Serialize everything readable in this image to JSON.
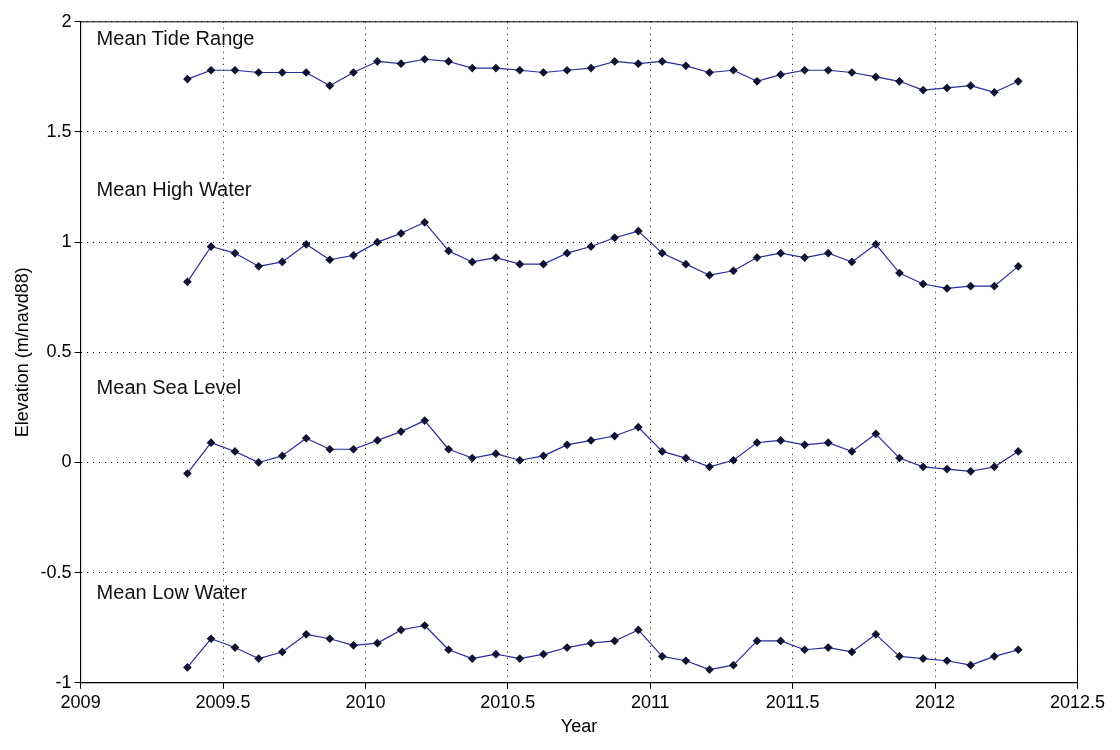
{
  "chart_data": {
    "type": "line",
    "xlabel": "Year",
    "ylabel": "Elevation (m/navd88)",
    "x": [
      2009.375,
      2009.458,
      2009.542,
      2009.625,
      2009.708,
      2009.792,
      2009.875,
      2009.958,
      2010.042,
      2010.125,
      2010.208,
      2010.292,
      2010.375,
      2010.458,
      2010.542,
      2010.625,
      2010.708,
      2010.792,
      2010.875,
      2010.958,
      2011.042,
      2011.125,
      2011.208,
      2011.292,
      2011.375,
      2011.458,
      2011.542,
      2011.625,
      2011.708,
      2011.792,
      2011.875,
      2011.958,
      2012.042,
      2012.125,
      2012.208,
      2012.292
    ],
    "series": [
      {
        "name": "Mean Tide Range",
        "color": "#2b2ba0",
        "values": [
          1.74,
          1.78,
          1.78,
          1.77,
          1.77,
          1.77,
          1.71,
          1.77,
          1.82,
          1.81,
          1.83,
          1.82,
          1.79,
          1.79,
          1.78,
          1.77,
          1.78,
          1.79,
          1.82,
          1.81,
          1.82,
          1.8,
          1.77,
          1.78,
          1.73,
          1.76,
          1.78,
          1.78,
          1.77,
          1.75,
          1.73,
          1.69,
          1.7,
          1.71,
          1.68,
          1.73
        ]
      },
      {
        "name": "Mean High Water",
        "color": "#2b2ba0",
        "values": [
          0.82,
          0.98,
          0.95,
          0.89,
          0.91,
          0.99,
          0.92,
          0.94,
          1.0,
          1.04,
          1.09,
          0.96,
          0.91,
          0.93,
          0.9,
          0.9,
          0.95,
          0.98,
          1.02,
          1.05,
          0.95,
          0.9,
          0.85,
          0.87,
          0.93,
          0.95,
          0.93,
          0.95,
          0.91,
          0.99,
          0.86,
          0.81,
          0.79,
          0.8,
          0.8,
          0.89
        ]
      },
      {
        "name": "Mean Sea Level",
        "color": "#2b2ba0",
        "values": [
          -0.05,
          0.09,
          0.05,
          0.0,
          0.03,
          0.11,
          0.06,
          0.06,
          0.1,
          0.14,
          0.19,
          0.06,
          0.02,
          0.04,
          0.01,
          0.03,
          0.08,
          0.1,
          0.12,
          0.16,
          0.05,
          0.02,
          -0.02,
          0.01,
          0.09,
          0.1,
          0.08,
          0.09,
          0.05,
          0.13,
          0.02,
          -0.02,
          -0.03,
          -0.04,
          -0.02,
          0.05
        ]
      },
      {
        "name": "Mean Low Water",
        "color": "#2b2ba0",
        "values": [
          -0.93,
          -0.8,
          -0.84,
          -0.89,
          -0.86,
          -0.78,
          -0.8,
          -0.83,
          -0.82,
          -0.76,
          -0.74,
          -0.85,
          -0.89,
          -0.87,
          -0.89,
          -0.87,
          -0.84,
          -0.82,
          -0.81,
          -0.76,
          -0.88,
          -0.9,
          -0.94,
          -0.92,
          -0.81,
          -0.81,
          -0.85,
          -0.84,
          -0.86,
          -0.78,
          -0.88,
          -0.89,
          -0.9,
          -0.92,
          -0.88,
          -0.85
        ]
      }
    ],
    "xlim": [
      2009,
      2012.5
    ],
    "xticks": [
      2009,
      2009.5,
      2010,
      2010.5,
      2011,
      2011.5,
      2012,
      2012.5
    ],
    "ylim": [
      -1,
      2
    ],
    "yticks": [
      -1,
      -0.5,
      0,
      0.5,
      1,
      1.5,
      2
    ],
    "grid": true,
    "legend": false,
    "marker": "diamond",
    "line_style": "solid"
  }
}
